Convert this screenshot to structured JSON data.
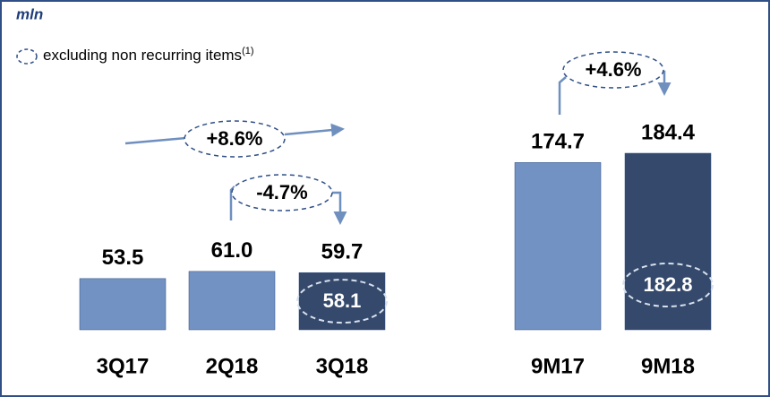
{
  "chart_data": {
    "type": "bar",
    "title": "mln",
    "legend": {
      "text": "excluding non recurring items",
      "superscript": "(1)"
    },
    "categories": [
      "3Q17",
      "2Q18",
      "3Q18",
      "9M17",
      "9M18"
    ],
    "values": [
      53.5,
      61.0,
      59.7,
      174.7,
      184.4
    ],
    "value_labels": [
      "53.5",
      "61.0",
      "59.7",
      "174.7",
      "184.4"
    ],
    "colors": [
      "#7192c2",
      "#7192c2",
      "#34496b",
      "#7192c2",
      "#34496b"
    ],
    "adjusted_values": [
      null,
      null,
      58.1,
      null,
      182.8
    ],
    "annotations": [
      "+8.6%",
      "-4.7%",
      "+4.6%"
    ]
  }
}
